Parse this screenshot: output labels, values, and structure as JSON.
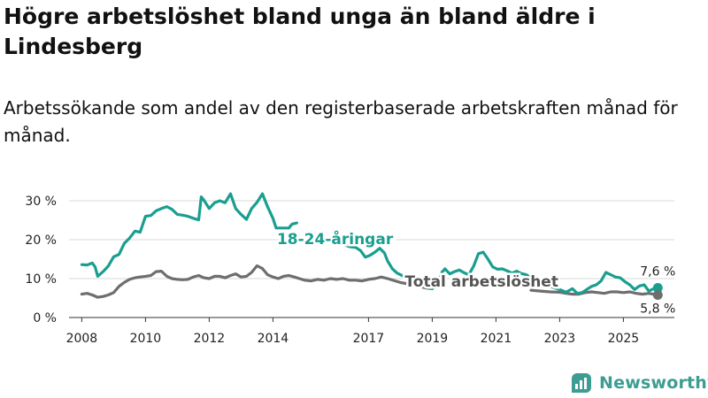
{
  "title": "Högre arbetslöshet bland unga än bland äldre i Lindesberg",
  "subtitle": "Arbetssökande som andel av den registerbaserade arbetskraften månad för månad.",
  "brand": {
    "name": "Newsworthy",
    "icon": "newsworthy-logo-icon"
  },
  "colors": {
    "youth": "#1a9e8f",
    "total": "#6e6e6e",
    "grid": "#d8d8d8",
    "label_total": "#555555"
  },
  "chart_data": {
    "type": "line",
    "title": "Högre arbetslöshet bland unga än bland äldre i Lindesberg",
    "xlabel": "",
    "ylabel": "",
    "xlim": [
      2007.6,
      2026.6
    ],
    "ylim": [
      0,
      32
    ],
    "x_ticks": [
      2008,
      2010,
      2012,
      2014,
      2017,
      2019,
      2021,
      2023,
      2025
    ],
    "y_ticks": [
      {
        "value": 0,
        "label": "0 %"
      },
      {
        "value": 10,
        "label": "10 %"
      },
      {
        "value": 20,
        "label": "20 %"
      },
      {
        "value": 30,
        "label": "30 %"
      }
    ],
    "series": [
      {
        "name": "18-24-åringar",
        "color": "#1a9e8f",
        "points": [
          [
            2008.0,
            13.6
          ],
          [
            2008.17,
            13.5
          ],
          [
            2008.33,
            14.0
          ],
          [
            2008.42,
            13.0
          ],
          [
            2008.5,
            10.6
          ],
          [
            2008.67,
            11.8
          ],
          [
            2008.83,
            13.2
          ],
          [
            2009.0,
            15.6
          ],
          [
            2009.17,
            16.2
          ],
          [
            2009.33,
            19.0
          ],
          [
            2009.5,
            20.4
          ],
          [
            2009.67,
            22.2
          ],
          [
            2009.83,
            21.9
          ],
          [
            2010.0,
            26.0
          ],
          [
            2010.17,
            26.2
          ],
          [
            2010.33,
            27.4
          ],
          [
            2010.5,
            28.0
          ],
          [
            2010.67,
            28.5
          ],
          [
            2010.83,
            27.8
          ],
          [
            2011.0,
            26.5
          ],
          [
            2011.17,
            26.3
          ],
          [
            2011.33,
            26.0
          ],
          [
            2011.5,
            25.5
          ],
          [
            2011.67,
            25.1
          ],
          [
            2011.75,
            31.0
          ],
          [
            2011.83,
            30.2
          ],
          [
            2012.0,
            28.0
          ],
          [
            2012.17,
            29.5
          ],
          [
            2012.33,
            30.0
          ],
          [
            2012.5,
            29.5
          ],
          [
            2012.67,
            31.8
          ],
          [
            2012.83,
            28.0
          ],
          [
            2013.0,
            26.5
          ],
          [
            2013.17,
            25.2
          ],
          [
            2013.33,
            28.0
          ],
          [
            2013.5,
            29.6
          ],
          [
            2013.67,
            31.8
          ],
          [
            2013.83,
            28.5
          ],
          [
            2014.0,
            25.5
          ],
          [
            2014.1,
            23.0
          ],
          [
            2014.5,
            23.0
          ],
          [
            2014.6,
            24.0
          ],
          [
            2014.75,
            24.3
          ],
          [
            2016.2,
            18.8
          ],
          [
            2016.4,
            18.2
          ],
          [
            2016.6,
            18.0
          ],
          [
            2016.75,
            17.2
          ],
          [
            2016.9,
            15.5
          ],
          [
            2017.05,
            16.0
          ],
          [
            2017.2,
            16.8
          ],
          [
            2017.35,
            17.8
          ],
          [
            2017.5,
            16.6
          ],
          [
            2017.6,
            14.5
          ],
          [
            2017.75,
            12.5
          ],
          [
            2017.9,
            11.4
          ],
          [
            2018.0,
            11.0
          ],
          [
            2018.2,
            10.2
          ],
          [
            2018.4,
            9.6
          ],
          [
            2018.6,
            8.6
          ],
          [
            2018.8,
            8.0
          ],
          [
            2019.0,
            7.4
          ],
          [
            2019.2,
            8.6
          ],
          [
            2019.3,
            11.6
          ],
          [
            2019.4,
            12.5
          ],
          [
            2019.55,
            11.2
          ],
          [
            2019.7,
            11.8
          ],
          [
            2019.85,
            12.2
          ],
          [
            2020.0,
            11.5
          ],
          [
            2020.15,
            11.0
          ],
          [
            2020.3,
            13.2
          ],
          [
            2020.45,
            16.4
          ],
          [
            2020.6,
            16.8
          ],
          [
            2020.75,
            15.0
          ],
          [
            2020.9,
            13.0
          ],
          [
            2021.05,
            12.4
          ],
          [
            2021.2,
            12.5
          ],
          [
            2021.35,
            12.0
          ],
          [
            2021.5,
            11.4
          ],
          [
            2021.65,
            11.9
          ],
          [
            2021.8,
            11.3
          ],
          [
            2021.95,
            11.0
          ],
          [
            2022.1,
            10.2
          ],
          [
            2022.4,
            9.0
          ],
          [
            2022.7,
            8.0
          ],
          [
            2023.0,
            7.2
          ],
          [
            2023.2,
            6.5
          ],
          [
            2023.4,
            7.4
          ],
          [
            2023.55,
            6.2
          ],
          [
            2023.7,
            6.4
          ],
          [
            2023.85,
            7.2
          ],
          [
            2024.0,
            8.0
          ],
          [
            2024.15,
            8.4
          ],
          [
            2024.3,
            9.4
          ],
          [
            2024.45,
            11.6
          ],
          [
            2024.6,
            11.0
          ],
          [
            2024.75,
            10.4
          ],
          [
            2024.9,
            10.2
          ],
          [
            2025.05,
            9.2
          ],
          [
            2025.2,
            8.4
          ],
          [
            2025.35,
            7.2
          ],
          [
            2025.5,
            8.1
          ],
          [
            2025.65,
            8.4
          ],
          [
            2025.8,
            6.8
          ],
          [
            2025.95,
            7.4
          ],
          [
            2026.08,
            7.6
          ]
        ]
      },
      {
        "name": "Total arbetslöshet",
        "color": "#6e6e6e",
        "points": [
          [
            2008.0,
            6.0
          ],
          [
            2008.17,
            6.2
          ],
          [
            2008.33,
            5.8
          ],
          [
            2008.5,
            5.2
          ],
          [
            2008.67,
            5.4
          ],
          [
            2008.83,
            5.8
          ],
          [
            2009.0,
            6.4
          ],
          [
            2009.17,
            8.0
          ],
          [
            2009.33,
            9.0
          ],
          [
            2009.5,
            9.8
          ],
          [
            2009.67,
            10.2
          ],
          [
            2009.83,
            10.4
          ],
          [
            2010.0,
            10.6
          ],
          [
            2010.17,
            10.8
          ],
          [
            2010.33,
            11.8
          ],
          [
            2010.5,
            11.9
          ],
          [
            2010.67,
            10.6
          ],
          [
            2010.83,
            10.0
          ],
          [
            2011.0,
            9.8
          ],
          [
            2011.17,
            9.7
          ],
          [
            2011.33,
            9.8
          ],
          [
            2011.5,
            10.4
          ],
          [
            2011.67,
            10.8
          ],
          [
            2011.83,
            10.2
          ],
          [
            2012.0,
            10.0
          ],
          [
            2012.17,
            10.6
          ],
          [
            2012.33,
            10.6
          ],
          [
            2012.5,
            10.2
          ],
          [
            2012.67,
            10.8
          ],
          [
            2012.83,
            11.2
          ],
          [
            2013.0,
            10.4
          ],
          [
            2013.17,
            10.6
          ],
          [
            2013.33,
            11.6
          ],
          [
            2013.5,
            13.3
          ],
          [
            2013.67,
            12.6
          ],
          [
            2013.83,
            11.0
          ],
          [
            2014.0,
            10.4
          ],
          [
            2014.17,
            10.0
          ],
          [
            2014.33,
            10.6
          ],
          [
            2014.5,
            10.8
          ],
          [
            2014.67,
            10.4
          ],
          [
            2014.83,
            10.0
          ],
          [
            2015.0,
            9.6
          ],
          [
            2015.2,
            9.4
          ],
          [
            2015.4,
            9.8
          ],
          [
            2015.6,
            9.6
          ],
          [
            2015.8,
            10.0
          ],
          [
            2016.0,
            9.8
          ],
          [
            2016.2,
            10.0
          ],
          [
            2016.4,
            9.6
          ],
          [
            2016.6,
            9.6
          ],
          [
            2016.8,
            9.4
          ],
          [
            2017.0,
            9.8
          ],
          [
            2017.2,
            10.0
          ],
          [
            2017.4,
            10.4
          ],
          [
            2017.6,
            10.0
          ],
          [
            2018.0,
            9.0
          ],
          [
            2018.4,
            8.4
          ],
          [
            2018.8,
            7.6
          ],
          [
            2019.0,
            7.4
          ],
          [
            2022.1,
            7.0
          ],
          [
            2022.4,
            6.8
          ],
          [
            2022.7,
            6.6
          ],
          [
            2023.0,
            6.5
          ],
          [
            2023.2,
            6.2
          ],
          [
            2023.4,
            6.0
          ],
          [
            2023.6,
            6.0
          ],
          [
            2023.8,
            6.4
          ],
          [
            2024.0,
            6.6
          ],
          [
            2024.2,
            6.4
          ],
          [
            2024.4,
            6.2
          ],
          [
            2024.6,
            6.6
          ],
          [
            2024.8,
            6.6
          ],
          [
            2025.0,
            6.4
          ],
          [
            2025.2,
            6.6
          ],
          [
            2025.4,
            6.2
          ],
          [
            2025.6,
            6.0
          ],
          [
            2025.8,
            6.2
          ],
          [
            2026.08,
            5.8
          ]
        ]
      }
    ],
    "series_labels": [
      {
        "text": "18-24-åringar",
        "series": "18-24-åringar",
        "x": 2015.95,
        "y": 20.2
      },
      {
        "text": "Total arbetslöshet",
        "series": "Total arbetslöshet",
        "x": 2020.55,
        "y": 9.3
      }
    ],
    "end_labels": [
      {
        "text": "7,6 %",
        "series": "18-24-åringar",
        "x": 2026.08,
        "y": 7.6
      },
      {
        "text": "5,8 %",
        "series": "Total arbetslöshet",
        "x": 2026.08,
        "y": 5.8
      }
    ]
  }
}
